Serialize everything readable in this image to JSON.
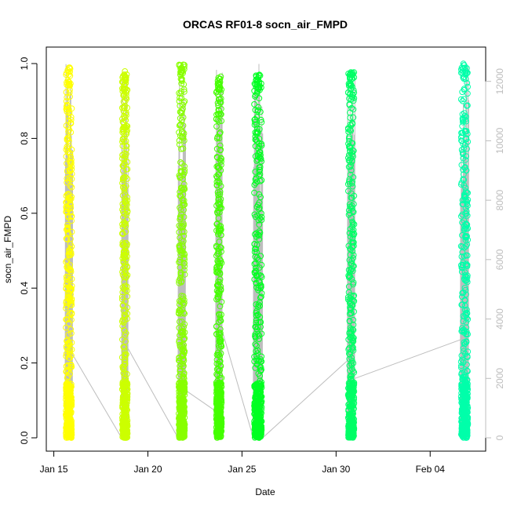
{
  "chart_data": {
    "type": "scatter",
    "title": "ORCAS RF01-8 socn_air_FMPD",
    "xlabel": "Date",
    "ylabel": "socn_air_FMPD",
    "ylim": [
      0,
      1.0
    ],
    "y_ticks": [
      0.0,
      0.2,
      0.4,
      0.6,
      0.8,
      1.0
    ],
    "y_tick_labels": [
      "0.0",
      "0.2",
      "0.4",
      "0.6",
      "0.8",
      "1.0"
    ],
    "x_range_days": [
      "2016-01-15",
      "2016-02-06"
    ],
    "x_ticks": [
      {
        "date": "2016-01-15",
        "label": "Jan 15"
      },
      {
        "date": "2016-01-20",
        "label": "Jan 20"
      },
      {
        "date": "2016-01-25",
        "label": "Jan 25"
      },
      {
        "date": "2016-01-30",
        "label": "Jan 30"
      },
      {
        "date": "2016-02-04",
        "label": "Feb 04"
      }
    ],
    "y2lim": [
      0,
      12600
    ],
    "y2_ticks": [
      0,
      2000,
      4000,
      6000,
      8000,
      10000,
      12000
    ],
    "y2_tick_labels": [
      "0",
      "2000",
      "4000",
      "6000",
      "8000",
      "10000",
      "12000"
    ],
    "grid": false,
    "legend": "none",
    "series": [
      {
        "date": "2016-01-15",
        "x_start_day": 15.6,
        "x_end_day": 16.0,
        "y_min": 0.0,
        "y_max": 0.99,
        "color": "#ffff00"
      },
      {
        "date": "2016-01-18",
        "x_start_day": 18.6,
        "x_end_day": 18.95,
        "y_min": 0.0,
        "y_max": 0.98,
        "color": "#ccff00"
      },
      {
        "date": "2016-01-21",
        "x_start_day": 21.6,
        "x_end_day": 22.0,
        "y_min": 0.0,
        "y_max": 1.0,
        "color": "#88ff00"
      },
      {
        "date": "2016-01-23",
        "x_start_day": 23.6,
        "x_end_day": 23.95,
        "y_min": 0.0,
        "y_max": 0.97,
        "color": "#44ff00"
      },
      {
        "date": "2016-01-25",
        "x_start_day": 25.6,
        "x_end_day": 26.1,
        "y_min": 0.0,
        "y_max": 0.98,
        "color": "#00ff22"
      },
      {
        "date": "2016-01-30",
        "x_start_day": 30.6,
        "x_end_day": 31.0,
        "y_min": 0.0,
        "y_max": 0.98,
        "color": "#00ff66"
      },
      {
        "date": "2016-02-05",
        "x_start_day": 36.6,
        "x_end_day": 37.05,
        "y_min": 0.0,
        "y_max": 1.0,
        "color": "#00ffaa"
      }
    ],
    "altitude_trace": {
      "color": "#bdbdbd",
      "connectors": [
        {
          "from_day": 16.0,
          "from_alt": 2800,
          "to_day": 18.6,
          "to_alt": 0
        },
        {
          "from_day": 18.95,
          "from_alt": 3000,
          "to_day": 21.6,
          "to_alt": 0
        },
        {
          "from_day": 22.0,
          "from_alt": 1600,
          "to_day": 23.6,
          "to_alt": 900
        },
        {
          "from_day": 23.95,
          "from_alt": 3600,
          "to_day": 25.6,
          "to_alt": 0
        },
        {
          "from_day": 26.1,
          "from_alt": 0,
          "to_day": 30.6,
          "to_alt": 2600
        },
        {
          "from_day": 31.0,
          "from_alt": 2000,
          "to_day": 36.6,
          "to_alt": 3300
        }
      ]
    }
  }
}
